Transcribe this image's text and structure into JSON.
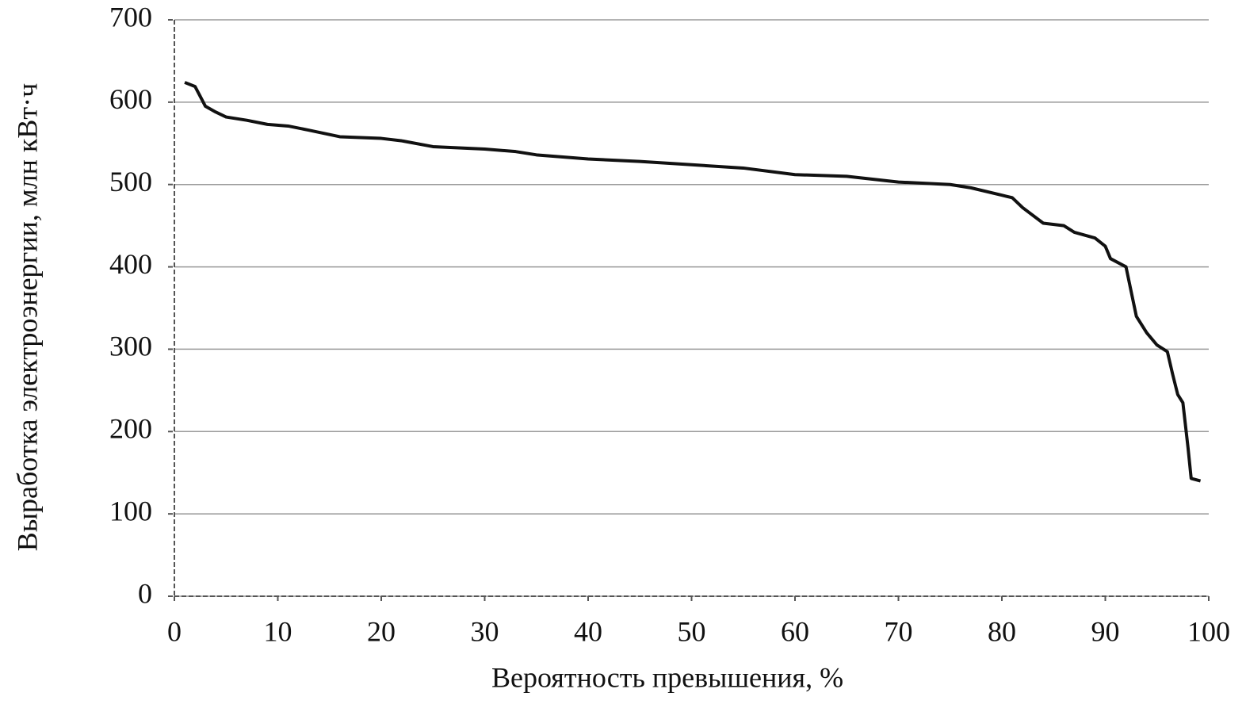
{
  "chart_data": {
    "type": "line",
    "x_label": "Вероятность превышения, %",
    "y_label": "Выработка электроэнергии, млн кВт·ч",
    "x": [
      1,
      2,
      3,
      4,
      5,
      7,
      9,
      11,
      13,
      16,
      20,
      22,
      25,
      30,
      33,
      35,
      40,
      45,
      50,
      55,
      60,
      65,
      70,
      75,
      77,
      80,
      81,
      82,
      84,
      86,
      87,
      89,
      90,
      90.5,
      92,
      92.5,
      93,
      94,
      95,
      96,
      96.5,
      97,
      97.5,
      98,
      98.3,
      99.2
    ],
    "series": [
      {
        "color": "#111111",
        "values": [
          624,
          619,
          595,
          588,
          582,
          578,
          573,
          571,
          566,
          558,
          556,
          553,
          546,
          543,
          540,
          536,
          531,
          528,
          524,
          520,
          512,
          510,
          503,
          500,
          496,
          487,
          484,
          472,
          453,
          450,
          442,
          435,
          425,
          410,
          400,
          370,
          340,
          320,
          305,
          297,
          270,
          245,
          235,
          180,
          143,
          140
        ]
      }
    ],
    "xlim": [
      0,
      100
    ],
    "xticks": [
      0,
      10,
      20,
      30,
      40,
      50,
      60,
      70,
      80,
      90,
      100
    ],
    "ylim": [
      0,
      700
    ],
    "yticks": [
      0,
      100,
      200,
      300,
      400,
      500,
      600,
      700
    ],
    "grid": true
  }
}
